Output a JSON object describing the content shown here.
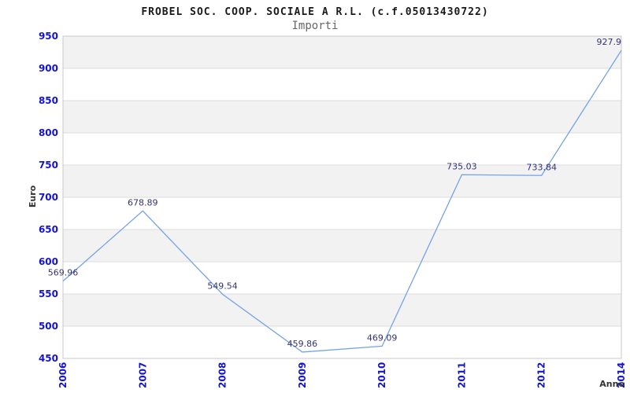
{
  "chart_data": {
    "type": "line",
    "title": "FROBEL SOC. COOP. SOCIALE A R.L. (c.f.05013430722)",
    "subtitle": "Importi",
    "xlabel": "Anno",
    "ylabel": "Euro",
    "categories": [
      "2006",
      "2007",
      "2008",
      "2009",
      "2010",
      "2011",
      "2012",
      "2014"
    ],
    "series": [
      {
        "name": "Importi",
        "values": [
          569.96,
          678.89,
          549.54,
          459.86,
          469.09,
          735.03,
          733.84,
          927.9
        ]
      }
    ],
    "value_labels": [
      "569.96",
      "678.89",
      "549.54",
      "459.86",
      "469.09",
      "735.03",
      "733.84",
      "927.9"
    ],
    "ylim": [
      450,
      950
    ],
    "ytick_step": 50,
    "grid": true,
    "legend_position": "none",
    "colors": {
      "line": "#74A3E8",
      "tick_label": "#1414CC",
      "value_label": "#333377",
      "band_dark": "#F2F2F2",
      "band_light": "#FFFFFF",
      "grid": "#DCDCDC",
      "border": "#C8C8C8",
      "title": "#1A1A1A",
      "subtitle": "#666666",
      "axis_label": "#333333",
      "background": "#FFFFFF"
    }
  }
}
